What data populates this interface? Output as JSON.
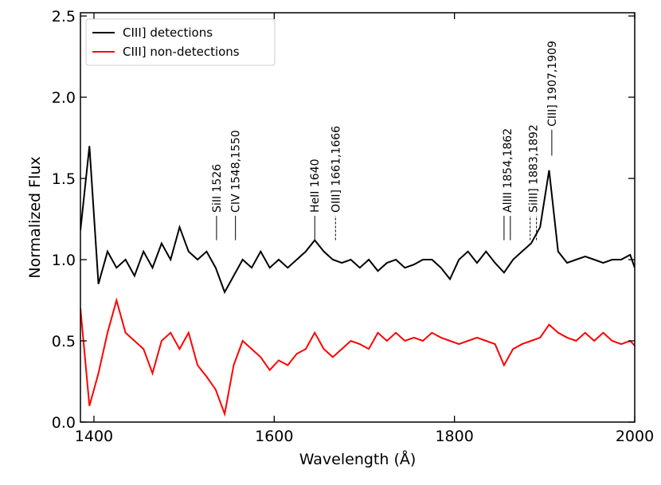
{
  "chart_data": {
    "type": "line",
    "xlabel": "Wavelength (Å)",
    "ylabel": "Normalized Flux",
    "x": [
      1385,
      1395,
      1405,
      1415,
      1425,
      1435,
      1445,
      1455,
      1465,
      1475,
      1485,
      1495,
      1505,
      1515,
      1525,
      1535,
      1545,
      1555,
      1565,
      1575,
      1585,
      1595,
      1605,
      1615,
      1625,
      1635,
      1645,
      1655,
      1665,
      1675,
      1685,
      1695,
      1705,
      1715,
      1725,
      1735,
      1745,
      1755,
      1765,
      1775,
      1785,
      1795,
      1805,
      1815,
      1825,
      1835,
      1845,
      1855,
      1865,
      1875,
      1885,
      1895,
      1905,
      1915,
      1925,
      1935,
      1945,
      1955,
      1965,
      1975,
      1985,
      1995,
      2000
    ],
    "series": [
      {
        "name": "CIII] detections",
        "color": "#000000",
        "values": [
          1.18,
          1.7,
          0.85,
          1.05,
          0.95,
          1.0,
          0.9,
          1.05,
          0.95,
          1.1,
          1.0,
          1.2,
          1.05,
          1.0,
          1.05,
          0.95,
          0.8,
          0.9,
          1.0,
          0.95,
          1.05,
          0.95,
          1.0,
          0.95,
          1.0,
          1.05,
          1.12,
          1.05,
          1.0,
          0.98,
          1.0,
          0.95,
          1.0,
          0.93,
          0.98,
          1.0,
          0.95,
          0.97,
          1.0,
          1.0,
          0.95,
          0.88,
          1.0,
          1.05,
          0.98,
          1.05,
          0.98,
          0.92,
          1.0,
          1.05,
          1.1,
          1.2,
          1.55,
          1.05,
          0.98,
          1.0,
          1.02,
          1.0,
          0.98,
          1.0,
          1.0,
          1.03,
          0.95
        ]
      },
      {
        "name": "CIII] non-detections",
        "color": "#ff0000",
        "values": [
          0.7,
          0.1,
          0.3,
          0.55,
          0.75,
          0.55,
          0.5,
          0.45,
          0.3,
          0.5,
          0.55,
          0.45,
          0.55,
          0.35,
          0.28,
          0.2,
          0.05,
          0.35,
          0.5,
          0.45,
          0.4,
          0.32,
          0.38,
          0.35,
          0.42,
          0.45,
          0.55,
          0.45,
          0.4,
          0.45,
          0.5,
          0.48,
          0.45,
          0.55,
          0.5,
          0.55,
          0.5,
          0.52,
          0.5,
          0.55,
          0.52,
          0.5,
          0.48,
          0.5,
          0.52,
          0.5,
          0.48,
          0.35,
          0.45,
          0.48,
          0.5,
          0.52,
          0.6,
          0.55,
          0.52,
          0.5,
          0.55,
          0.5,
          0.55,
          0.5,
          0.48,
          0.5,
          0.47
        ]
      }
    ],
    "xlim": [
      1385,
      2000
    ],
    "ylim": [
      0,
      2.52
    ],
    "xticks": [
      1400,
      1600,
      1800,
      2000
    ],
    "yticks": [
      {
        "value": 0,
        "label": "0.0"
      },
      0.5,
      {
        "value": 1,
        "label": "1.0"
      },
      1.5,
      {
        "value": 2,
        "label": "2.0"
      },
      2.5
    ],
    "legend": "upper left",
    "annotations": [
      {
        "text": "SiII 1526",
        "x": [
          1536
        ],
        "y": [
          1.12,
          1.27
        ],
        "linestyle": "solid"
      },
      {
        "text": "CIV 1548,1550",
        "x": [
          1557
        ],
        "y": [
          1.12,
          1.27
        ],
        "linestyle": "solid"
      },
      {
        "text": "HeII 1640",
        "x": [
          1645
        ],
        "y": [
          1.12,
          1.27
        ],
        "linestyle": "solid"
      },
      {
        "text": "OIII] 1661,1666",
        "x": [
          1668
        ],
        "y": [
          1.12,
          1.27
        ],
        "linestyle": "dashed"
      },
      {
        "text": "AlIII 1854,1862",
        "x": [
          1855,
          1862
        ],
        "y": [
          1.12,
          1.27
        ],
        "linestyle": "solid"
      },
      {
        "text": "SiIII] 1883,1892",
        "x": [
          1884,
          1891
        ],
        "y": [
          1.12,
          1.27
        ],
        "linestyle": "dashed"
      },
      {
        "text": "CIII] 1907,1909",
        "x": [
          1908
        ],
        "y": [
          1.64,
          1.8
        ],
        "linestyle": "solid"
      }
    ]
  }
}
